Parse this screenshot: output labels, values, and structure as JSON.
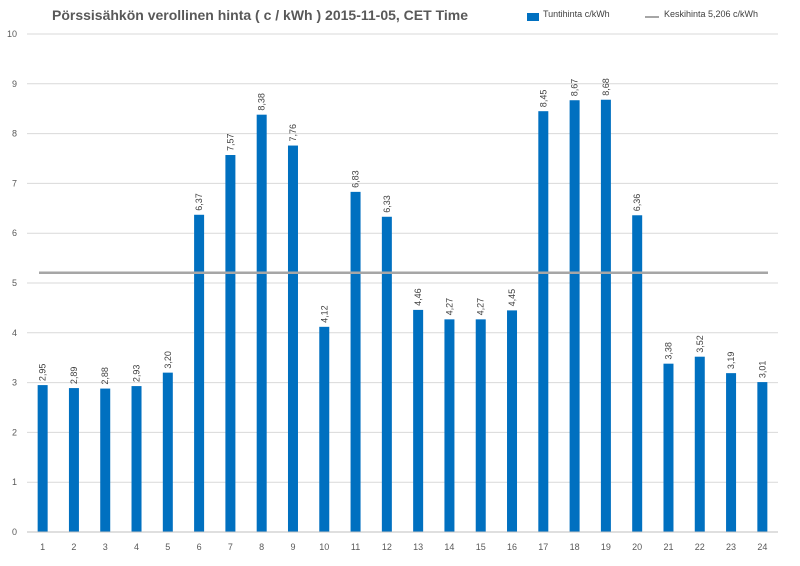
{
  "chart_data": {
    "type": "bar",
    "title": "Pörssisähkön verollinen hinta ( c / kWh ) 2015-11-05, CET Time",
    "xlabel": "",
    "ylabel": "",
    "ylim": [
      0,
      10
    ],
    "yticks": [
      "0",
      "1",
      "2",
      "3",
      "4",
      "5",
      "6",
      "7",
      "8",
      "9",
      "10"
    ],
    "grid": true,
    "legend_position": "top-right",
    "categories": [
      "1",
      "2",
      "3",
      "4",
      "5",
      "6",
      "7",
      "8",
      "9",
      "10",
      "11",
      "12",
      "13",
      "14",
      "15",
      "16",
      "17",
      "18",
      "19",
      "20",
      "21",
      "22",
      "23",
      "24"
    ],
    "series": [
      {
        "name": "Tuntihinta c/kWh",
        "type": "bar",
        "color": "#0070C0",
        "values": [
          2.95,
          2.89,
          2.88,
          2.93,
          3.2,
          6.37,
          7.57,
          8.38,
          7.76,
          4.12,
          6.83,
          6.33,
          4.46,
          4.27,
          4.27,
          4.45,
          8.45,
          8.67,
          8.68,
          6.36,
          3.38,
          3.52,
          3.19,
          3.01
        ],
        "data_labels": [
          "2,95",
          "2,89",
          "2,88",
          "2,93",
          "3,20",
          "6,37",
          "7,57",
          "8,38",
          "7,76",
          "4,12",
          "6,83",
          "6,33",
          "4,46",
          "4,27",
          "4,27",
          "4,45",
          "8,45",
          "8,67",
          "8,68",
          "6,36",
          "3,38",
          "3,52",
          "3,19",
          "3,01"
        ]
      },
      {
        "name": "Keskihinta 5,206 c/kWh",
        "type": "line",
        "color": "#A6A6A6",
        "value": 5.206
      }
    ]
  }
}
